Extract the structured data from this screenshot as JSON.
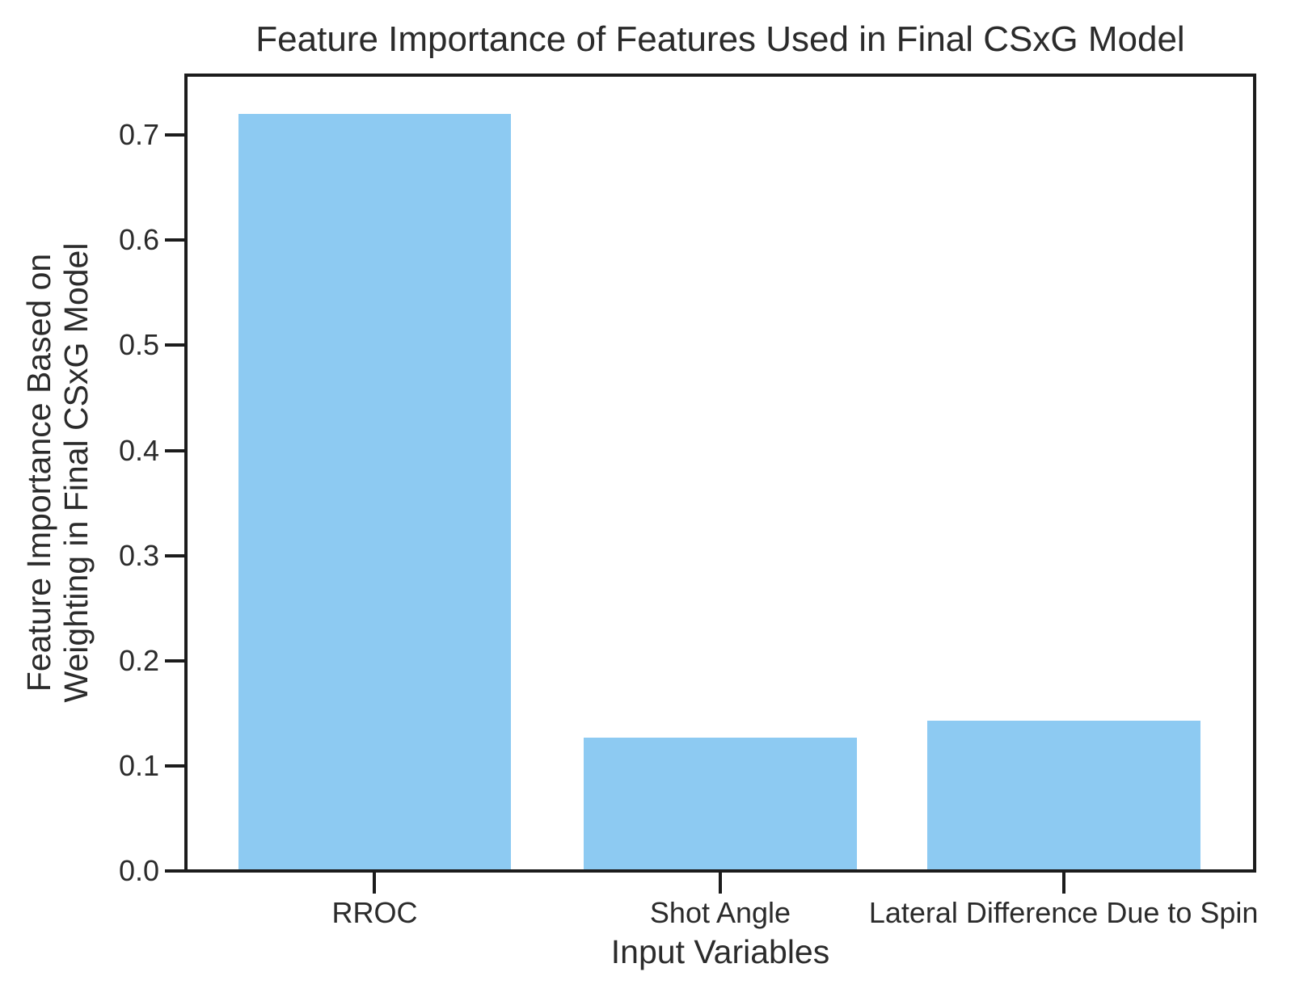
{
  "chart_data": {
    "type": "bar",
    "title": "Feature Importance of Features Used in Final CSxG Model",
    "xlabel": "Input Variables",
    "ylabel": "Feature Importance Based on\nWeighting in Final CSxG Model",
    "categories": [
      "RROC",
      "Shot Angle",
      "Lateral Difference Due to Spin"
    ],
    "values": [
      0.72,
      0.127,
      0.143
    ],
    "ylim": [
      0,
      0.757
    ],
    "yticks": [
      0.0,
      0.1,
      0.2,
      0.3,
      0.4,
      0.5,
      0.6,
      0.7
    ],
    "ytick_labels": [
      "0.0",
      "0.1",
      "0.2",
      "0.3",
      "0.4",
      "0.5",
      "0.6",
      "0.7"
    ],
    "grid": false,
    "legend": "none",
    "bar_centers_frac": [
      0.1766,
      0.5,
      0.8212
    ],
    "bar_width_frac": 0.2556
  },
  "colors": {
    "background": "#ffffff",
    "bar": "#8dcaf2",
    "spine": "#1c1c1c",
    "text": "#2b2b2b"
  }
}
